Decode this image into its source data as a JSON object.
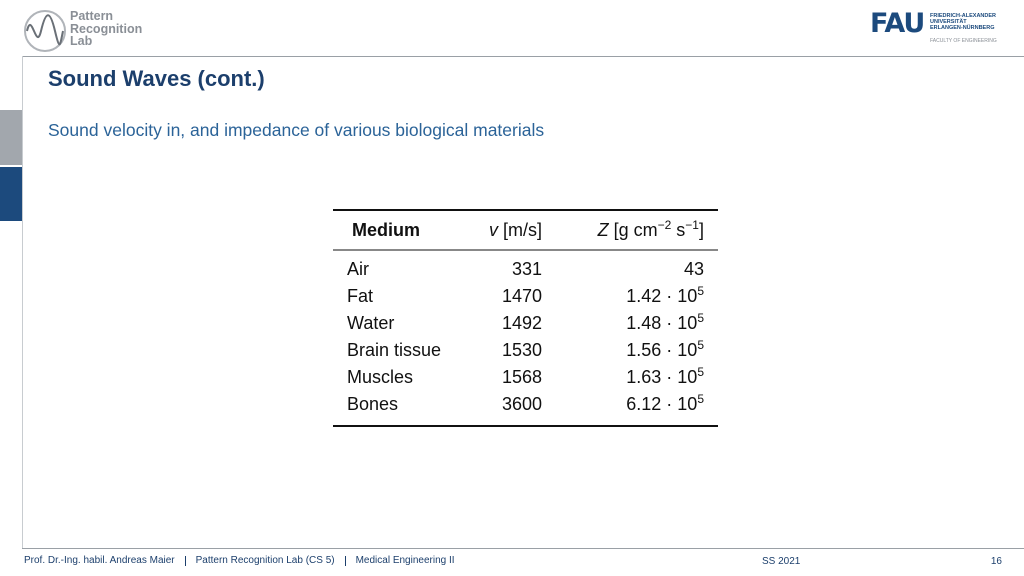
{
  "header": {
    "logo_text": [
      "Pattern",
      "Recognition",
      "Lab"
    ],
    "fau_logo": "FAU",
    "fau_name": [
      "FRIEDRICH-ALEXANDER",
      "UNIVERSITÄT",
      "ERLANGEN-NÜRNBERG"
    ],
    "fau_faculty": "FACULTY OF ENGINEERING"
  },
  "title": "Sound Waves (cont.)",
  "subtitle": "Sound velocity in, and impedance of various biological materials",
  "table": {
    "header": {
      "medium": "Medium",
      "velocity": {
        "symbol": "v",
        "unit": "[m/s]"
      },
      "impedance": {
        "symbol": "Z",
        "unit_parts": [
          "[g cm",
          "−2",
          " s",
          "−1",
          "]"
        ]
      }
    },
    "rows": [
      {
        "medium": "Air",
        "velocity": 331,
        "impedance": {
          "mantissa": "43"
        }
      },
      {
        "medium": "Fat",
        "velocity": 1470,
        "impedance": {
          "mantissa": "1.42 · 10",
          "exponent": "5"
        }
      },
      {
        "medium": "Water",
        "velocity": 1492,
        "impedance": {
          "mantissa": "1.48 · 10",
          "exponent": "5"
        }
      },
      {
        "medium": "Brain tissue",
        "velocity": 1530,
        "impedance": {
          "mantissa": "1.56 · 10",
          "exponent": "5"
        }
      },
      {
        "medium": "Muscles",
        "velocity": 1568,
        "impedance": {
          "mantissa": "1.63 · 10",
          "exponent": "5"
        }
      },
      {
        "medium": "Bones",
        "velocity": 3600,
        "impedance": {
          "mantissa": "6.12 · 10",
          "exponent": "5"
        }
      }
    ]
  },
  "footer": {
    "items": [
      "Prof. Dr.-Ing. habil. Andreas Maier",
      "Pattern Recognition Lab (CS 5)",
      "Medical Engineering II"
    ],
    "semester": "SS 2021",
    "page": "16"
  }
}
